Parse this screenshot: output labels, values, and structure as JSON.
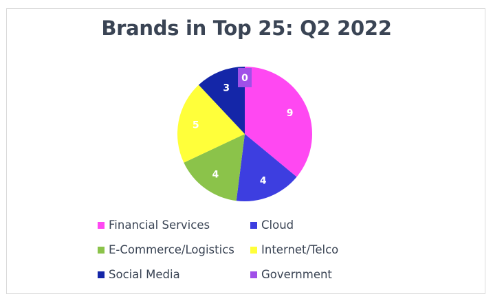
{
  "chart_data": {
    "type": "pie",
    "title": "Brands in Top 25: Q2 2022",
    "categories": [
      "Financial Services",
      "Cloud",
      "E-Commerce/Logistics",
      "Internet/Telco",
      "Social Media",
      "Government"
    ],
    "values": [
      9,
      4,
      4,
      5,
      3,
      0
    ],
    "data_labels": [
      "9",
      "4",
      "4",
      "5",
      "3",
      "0"
    ],
    "colors": [
      "#ff48f2",
      "#3d3ee0",
      "#8bc34a",
      "#ffff3a",
      "#1426a8",
      "#a050e8"
    ],
    "legend_position": "bottom",
    "grid": false
  }
}
